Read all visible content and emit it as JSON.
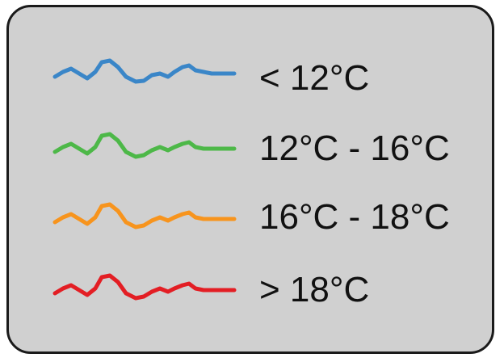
{
  "legend": {
    "items": [
      {
        "label": "< 12°C",
        "color": "#3a86c8"
      },
      {
        "label": "12°C - 16°C",
        "color": "#4db848"
      },
      {
        "label": "16°C - 18°C",
        "color": "#f7941d"
      },
      {
        "label": "> 18°C",
        "color": "#e31e24"
      }
    ]
  }
}
